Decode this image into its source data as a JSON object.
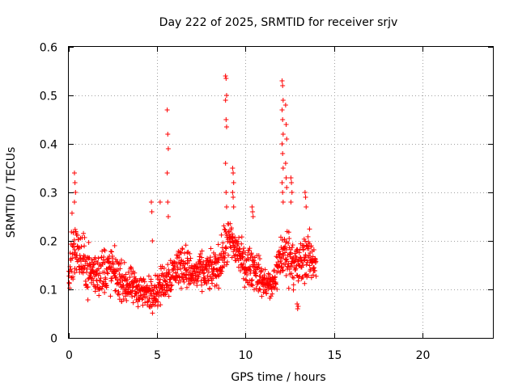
{
  "chart_data": {
    "type": "scatter",
    "title": "Day 222 of 2025, SRMTID for receiver srjv",
    "xlabel": "GPS time / hours",
    "ylabel": "SRMTID / TECUs",
    "xlim": [
      0,
      24
    ],
    "ylim": [
      0,
      0.6
    ],
    "xticks": [
      "0",
      "5",
      "10",
      "15",
      "20"
    ],
    "yticks": [
      "0",
      "0.1",
      "0.2",
      "0.3",
      "0.4",
      "0.5",
      "0.6"
    ],
    "grid": true,
    "marker": "+",
    "color": "#ff0000",
    "envelope": [
      {
        "t": 0.0,
        "lo": 0.06,
        "hi": 0.16
      },
      {
        "t": 0.2,
        "lo": 0.1,
        "hi": 0.3
      },
      {
        "t": 0.5,
        "lo": 0.1,
        "hi": 0.25
      },
      {
        "t": 1.0,
        "lo": 0.07,
        "hi": 0.22
      },
      {
        "t": 1.5,
        "lo": 0.06,
        "hi": 0.2
      },
      {
        "t": 2.0,
        "lo": 0.06,
        "hi": 0.22
      },
      {
        "t": 2.5,
        "lo": 0.07,
        "hi": 0.21
      },
      {
        "t": 3.0,
        "lo": 0.06,
        "hi": 0.17
      },
      {
        "t": 3.5,
        "lo": 0.05,
        "hi": 0.16
      },
      {
        "t": 4.0,
        "lo": 0.05,
        "hi": 0.15
      },
      {
        "t": 4.5,
        "lo": 0.04,
        "hi": 0.14
      },
      {
        "t": 5.0,
        "lo": 0.05,
        "hi": 0.15
      },
      {
        "t": 5.5,
        "lo": 0.06,
        "hi": 0.18
      },
      {
        "t": 6.0,
        "lo": 0.08,
        "hi": 0.2
      },
      {
        "t": 6.5,
        "lo": 0.09,
        "hi": 0.22
      },
      {
        "t": 7.0,
        "lo": 0.08,
        "hi": 0.18
      },
      {
        "t": 7.5,
        "lo": 0.08,
        "hi": 0.19
      },
      {
        "t": 8.0,
        "lo": 0.08,
        "hi": 0.19
      },
      {
        "t": 8.5,
        "lo": 0.09,
        "hi": 0.21
      },
      {
        "t": 9.0,
        "lo": 0.13,
        "hi": 0.27
      },
      {
        "t": 9.5,
        "lo": 0.12,
        "hi": 0.25
      },
      {
        "t": 10.0,
        "lo": 0.09,
        "hi": 0.2
      },
      {
        "t": 10.5,
        "lo": 0.08,
        "hi": 0.21
      },
      {
        "t": 11.0,
        "lo": 0.07,
        "hi": 0.16
      },
      {
        "t": 11.5,
        "lo": 0.06,
        "hi": 0.15
      },
      {
        "t": 12.0,
        "lo": 0.1,
        "hi": 0.24
      },
      {
        "t": 12.5,
        "lo": 0.09,
        "hi": 0.25
      },
      {
        "t": 13.0,
        "lo": 0.07,
        "hi": 0.22
      },
      {
        "t": 13.5,
        "lo": 0.09,
        "hi": 0.25
      },
      {
        "t": 14.0,
        "lo": 0.11,
        "hi": 0.2
      }
    ],
    "spikes": [
      {
        "x": 0.35,
        "y": [
          0.34,
          0.32,
          0.3,
          0.28
        ]
      },
      {
        "x": 4.7,
        "y": [
          0.28,
          0.26,
          0.2
        ]
      },
      {
        "x": 5.2,
        "y": [
          0.28
        ]
      },
      {
        "x": 5.6,
        "y": [
          0.47,
          0.42,
          0.39,
          0.34,
          0.28,
          0.25
        ]
      },
      {
        "x": 8.9,
        "y": [
          0.54,
          0.535,
          0.5,
          0.49,
          0.45,
          0.435,
          0.36,
          0.3,
          0.27
        ]
      },
      {
        "x": 9.3,
        "y": [
          0.35,
          0.34,
          0.32,
          0.3,
          0.29,
          0.27
        ]
      },
      {
        "x": 10.4,
        "y": [
          0.27,
          0.26,
          0.25
        ]
      },
      {
        "x": 12.1,
        "y": [
          0.53,
          0.52,
          0.49,
          0.47,
          0.45,
          0.42,
          0.4,
          0.38,
          0.35,
          0.32,
          0.3,
          0.28
        ]
      },
      {
        "x": 12.3,
        "y": [
          0.48,
          0.44,
          0.41,
          0.36,
          0.33,
          0.31
        ]
      },
      {
        "x": 12.6,
        "y": [
          0.33,
          0.32,
          0.3,
          0.28
        ]
      },
      {
        "x": 13.4,
        "y": [
          0.3,
          0.29,
          0.27
        ]
      },
      {
        "x": 12.95,
        "y": [
          0.07,
          0.06,
          0.065
        ]
      }
    ]
  }
}
